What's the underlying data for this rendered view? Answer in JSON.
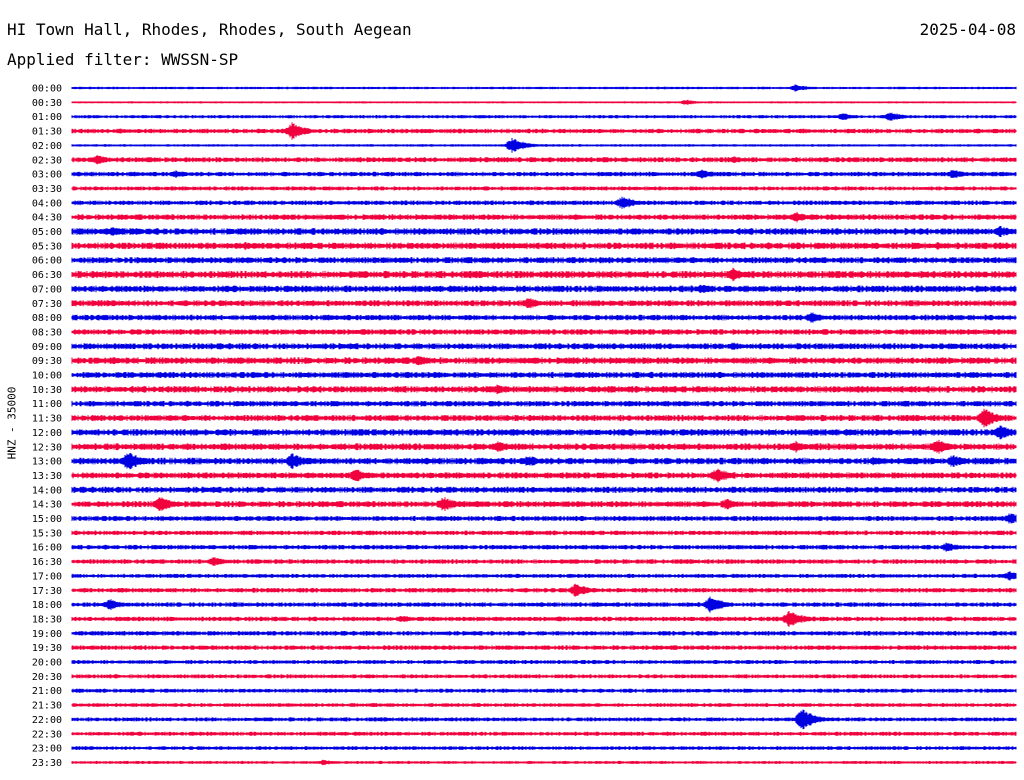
{
  "header": {
    "station": "HI Town Hall, Rhodes, Rhodes, South Aegean",
    "date": "2025-04-08",
    "filter": "Applied filter: WWSSN-SP"
  },
  "channel_label": "HNZ - 35000",
  "colors": {
    "odd_trace": "#0000e0",
    "even_trace": "#f0003c",
    "text": "#000000"
  },
  "chart_data": {
    "type": "line",
    "title": "HI Town Hall, Rhodes, Rhodes, South Aegean",
    "subtitle": "Applied filter: WWSSN-SP",
    "ylabel": "HNZ - 35000",
    "xlabel": "",
    "row_labels": [
      "00:00",
      "00:30",
      "01:00",
      "01:30",
      "02:00",
      "02:30",
      "03:00",
      "03:30",
      "04:00",
      "04:30",
      "05:00",
      "05:30",
      "06:00",
      "06:30",
      "07:00",
      "07:30",
      "08:00",
      "08:30",
      "09:00",
      "09:30",
      "10:00",
      "10:30",
      "11:00",
      "11:30",
      "12:00",
      "12:30",
      "13:00",
      "13:30",
      "14:00",
      "14:30",
      "15:00",
      "15:30",
      "16:00",
      "16:30",
      "17:00",
      "17:30",
      "18:00",
      "18:30",
      "19:00",
      "19:30",
      "20:00",
      "20:30",
      "21:00",
      "21:30",
      "22:00",
      "22:30",
      "23:00",
      "23:30"
    ],
    "row_minutes": 30,
    "noise_level": [
      1.0,
      0.8,
      1.3,
      1.8,
      1.0,
      2.0,
      1.8,
      1.6,
      1.8,
      2.2,
      2.6,
      2.6,
      2.4,
      2.8,
      2.6,
      2.4,
      2.2,
      2.2,
      2.4,
      2.6,
      2.4,
      2.6,
      2.2,
      2.4,
      2.6,
      2.6,
      2.6,
      2.4,
      2.4,
      2.4,
      2.0,
      1.8,
      1.8,
      1.8,
      1.6,
      1.8,
      1.8,
      1.8,
      1.8,
      1.8,
      1.6,
      1.6,
      1.6,
      1.5,
      1.6,
      1.6,
      1.5,
      1.2
    ],
    "events": [
      {
        "row": 0,
        "minute": 23.0,
        "amplitude": 4
      },
      {
        "row": 1,
        "minute": 19.5,
        "amplitude": 3
      },
      {
        "row": 2,
        "minute": 24.5,
        "amplitude": 4
      },
      {
        "row": 2,
        "minute": 26.0,
        "amplitude": 5
      },
      {
        "row": 3,
        "minute": 7.0,
        "amplitude": 9
      },
      {
        "row": 3,
        "minute": 1.5,
        "amplitude": 3
      },
      {
        "row": 4,
        "minute": 14.0,
        "amplitude": 8
      },
      {
        "row": 5,
        "minute": 0.8,
        "amplitude": 5
      },
      {
        "row": 5,
        "minute": 21.0,
        "amplitude": 4
      },
      {
        "row": 6,
        "minute": 3.3,
        "amplitude": 4
      },
      {
        "row": 6,
        "minute": 20.0,
        "amplitude": 5
      },
      {
        "row": 6,
        "minute": 28.0,
        "amplitude": 5
      },
      {
        "row": 8,
        "minute": 17.5,
        "amplitude": 7
      },
      {
        "row": 9,
        "minute": 23.0,
        "amplitude": 6
      },
      {
        "row": 10,
        "minute": 1.3,
        "amplitude": 5
      },
      {
        "row": 10,
        "minute": 29.5,
        "amplitude": 6
      },
      {
        "row": 11,
        "minute": 5.5,
        "amplitude": 4
      },
      {
        "row": 11,
        "minute": 27.5,
        "amplitude": 4
      },
      {
        "row": 13,
        "minute": 21.0,
        "amplitude": 7
      },
      {
        "row": 14,
        "minute": 20.0,
        "amplitude": 5
      },
      {
        "row": 15,
        "minute": 14.5,
        "amplitude": 6
      },
      {
        "row": 16,
        "minute": 23.5,
        "amplitude": 6
      },
      {
        "row": 18,
        "minute": 21.0,
        "amplitude": 4
      },
      {
        "row": 19,
        "minute": 11.0,
        "amplitude": 6
      },
      {
        "row": 19,
        "minute": 1.3,
        "amplitude": 4
      },
      {
        "row": 21,
        "minute": 13.5,
        "amplitude": 5
      },
      {
        "row": 23,
        "minute": 29.0,
        "amplitude": 10
      },
      {
        "row": 24,
        "minute": 29.5,
        "amplitude": 8
      },
      {
        "row": 24,
        "minute": 14.0,
        "amplitude": 4
      },
      {
        "row": 25,
        "minute": 13.5,
        "amplitude": 6
      },
      {
        "row": 25,
        "minute": 23.0,
        "amplitude": 6
      },
      {
        "row": 25,
        "minute": 27.5,
        "amplitude": 8
      },
      {
        "row": 26,
        "minute": 1.8,
        "amplitude": 10
      },
      {
        "row": 26,
        "minute": 7.0,
        "amplitude": 8
      },
      {
        "row": 26,
        "minute": 14.5,
        "amplitude": 6
      },
      {
        "row": 26,
        "minute": 25.5,
        "amplitude": 5
      },
      {
        "row": 26,
        "minute": 28.0,
        "amplitude": 7
      },
      {
        "row": 27,
        "minute": 9.0,
        "amplitude": 7
      },
      {
        "row": 27,
        "minute": 20.5,
        "amplitude": 8
      },
      {
        "row": 29,
        "minute": 2.8,
        "amplitude": 8
      },
      {
        "row": 29,
        "minute": 11.8,
        "amplitude": 8
      },
      {
        "row": 29,
        "minute": 20.8,
        "amplitude": 6
      },
      {
        "row": 30,
        "minute": 29.8,
        "amplitude": 6
      },
      {
        "row": 32,
        "minute": 27.8,
        "amplitude": 5
      },
      {
        "row": 33,
        "minute": 4.5,
        "amplitude": 5
      },
      {
        "row": 34,
        "minute": 29.8,
        "amplitude": 5
      },
      {
        "row": 35,
        "minute": 16.0,
        "amplitude": 7
      },
      {
        "row": 36,
        "minute": 1.2,
        "amplitude": 6
      },
      {
        "row": 36,
        "minute": 20.3,
        "amplitude": 9
      },
      {
        "row": 37,
        "minute": 10.5,
        "amplitude": 4
      },
      {
        "row": 37,
        "minute": 22.8,
        "amplitude": 9
      },
      {
        "row": 44,
        "minute": 23.2,
        "amplitude": 11
      },
      {
        "row": 47,
        "minute": 8.0,
        "amplitude": 3
      }
    ]
  }
}
